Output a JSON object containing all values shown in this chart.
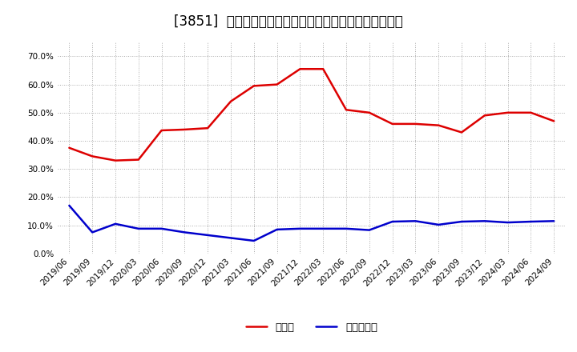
{
  "title": "[3851]  現須金、有利子負債の総資産に対する比率の推移",
  "cash_dates": [
    "2019/06",
    "2019/09",
    "2019/12",
    "2020/03",
    "2020/06",
    "2020/09",
    "2020/12",
    "2021/03",
    "2021/06",
    "2021/09",
    "2021/12",
    "2022/03",
    "2022/06",
    "2022/09",
    "2022/12",
    "2023/03",
    "2023/06",
    "2023/09",
    "2023/12",
    "2024/03",
    "2024/06",
    "2024/09"
  ],
  "cash_values": [
    0.375,
    0.345,
    0.33,
    0.333,
    0.437,
    0.44,
    0.445,
    0.54,
    0.595,
    0.6,
    0.655,
    0.655,
    0.51,
    0.5,
    0.46,
    0.46,
    0.455,
    0.43,
    0.49,
    0.5,
    0.5,
    0.47
  ],
  "debt_dates": [
    "2019/06",
    "2019/09",
    "2019/12",
    "2020/03",
    "2020/06",
    "2020/09",
    "2020/12",
    "2021/03",
    "2021/06",
    "2021/09",
    "2021/12",
    "2022/03",
    "2022/06",
    "2022/09",
    "2022/12",
    "2023/03",
    "2023/06",
    "2023/09",
    "2023/12",
    "2024/03",
    "2024/06",
    "2024/09"
  ],
  "debt_values": [
    0.17,
    0.075,
    0.105,
    0.088,
    0.088,
    0.075,
    0.065,
    0.055,
    0.045,
    0.085,
    0.088,
    0.088,
    0.088,
    0.083,
    0.113,
    0.115,
    0.102,
    0.113,
    0.115,
    0.11,
    0.113,
    0.115
  ],
  "cash_color": "#dd0000",
  "debt_color": "#0000cc",
  "bg_color": "#ffffff",
  "plot_bg_color": "#ffffff",
  "grid_color": "#aaaaaa",
  "ylim": [
    0.0,
    0.75
  ],
  "yticks": [
    0.0,
    0.1,
    0.2,
    0.3,
    0.4,
    0.5,
    0.6,
    0.7
  ],
  "legend_cash": "現須金",
  "legend_debt": "有利子負債",
  "title_fontsize": 12,
  "tick_fontsize": 7.5,
  "legend_fontsize": 9.5,
  "linewidth": 1.8
}
